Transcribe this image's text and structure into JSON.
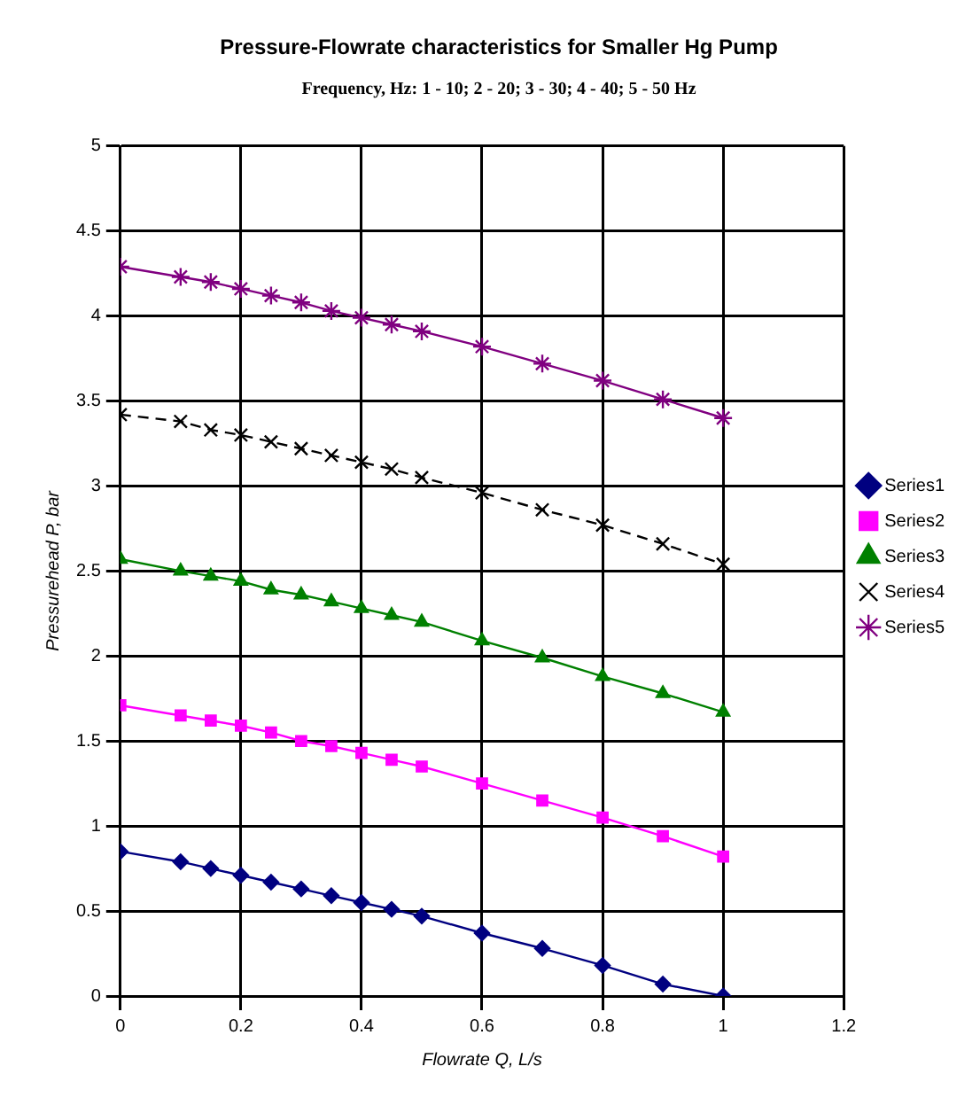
{
  "chart_data": {
    "type": "line",
    "title": "Pressure-Flowrate characteristics for Smaller Hg Pump",
    "subtitle": "Frequency, Hz: 1 - 10; 2 - 20; 3 - 30; 4 - 40; 5 - 50 Hz",
    "xlabel": "Flowrate Q, L/s",
    "ylabel": "Pressurehead P, bar",
    "x": [
      0,
      0.1,
      0.15,
      0.2,
      0.25,
      0.3,
      0.35,
      0.4,
      0.45,
      0.5,
      0.6,
      0.7,
      0.8,
      0.9,
      1
    ],
    "series": [
      {
        "name": "Series1",
        "color": "#000080",
        "marker": "diamond",
        "values": [
          0.85,
          0.79,
          0.75,
          0.71,
          0.67,
          0.63,
          0.59,
          0.55,
          0.51,
          0.47,
          0.37,
          0.28,
          0.18,
          0.07,
          0.0
        ]
      },
      {
        "name": "Series2",
        "color": "#ff00ff",
        "marker": "square",
        "values": [
          1.71,
          1.65,
          1.62,
          1.59,
          1.55,
          1.5,
          1.47,
          1.43,
          1.39,
          1.35,
          1.25,
          1.15,
          1.05,
          0.94,
          0.82
        ]
      },
      {
        "name": "Series3",
        "color": "#008000",
        "marker": "triangle",
        "values": [
          2.57,
          2.5,
          2.47,
          2.44,
          2.39,
          2.36,
          2.32,
          2.28,
          2.24,
          2.2,
          2.09,
          1.99,
          1.88,
          1.78,
          1.67
        ]
      },
      {
        "name": "Series4",
        "color": "#000000",
        "marker": "cross",
        "line_style": "dashed",
        "values": [
          3.42,
          3.38,
          3.33,
          3.3,
          3.26,
          3.22,
          3.18,
          3.14,
          3.1,
          3.05,
          2.96,
          2.86,
          2.77,
          2.66,
          2.54
        ]
      },
      {
        "name": "Series5",
        "color": "#800080",
        "marker": "cross",
        "values": [
          4.29,
          4.23,
          4.2,
          4.16,
          4.12,
          4.08,
          4.03,
          3.99,
          3.95,
          3.91,
          3.82,
          3.72,
          3.62,
          3.51,
          3.4
        ]
      }
    ],
    "xlim": [
      0,
      1.2
    ],
    "xticks": [
      0,
      0.2,
      0.4,
      0.6,
      0.8,
      1,
      1.2
    ],
    "ylim": [
      0,
      5
    ],
    "yticks": [
      0,
      0.5,
      1,
      1.5,
      2,
      2.5,
      3,
      3.5,
      4,
      4.5,
      5
    ],
    "grid": true,
    "legend": "right"
  }
}
